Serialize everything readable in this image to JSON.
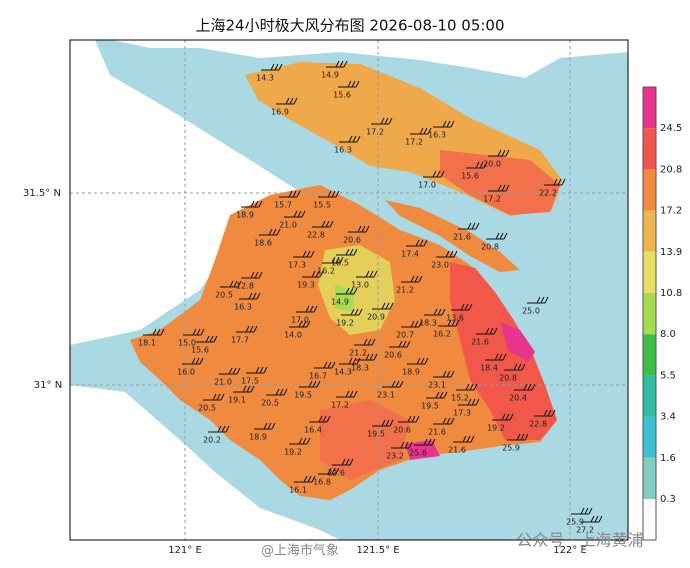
{
  "title": "上海24小时极大风分布图 2026-08-10 05:00",
  "lat_labels": [
    "31.5° N",
    "31° N"
  ],
  "lon_labels": [
    "121° E",
    "121.5° E",
    "122° E"
  ],
  "colorbar": [
    {
      "label": "24.5",
      "color": "#e8348c"
    },
    {
      "label": "20.8",
      "color": "#f0564a"
    },
    {
      "label": "17.2",
      "color": "#f08a3e"
    },
    {
      "label": "13.9",
      "color": "#eeb452"
    },
    {
      "label": "10.8",
      "color": "#e8e05e"
    },
    {
      "label": "8.0",
      "color": "#a6dc50"
    },
    {
      "label": "5.5",
      "color": "#3cbf44"
    },
    {
      "label": "3.4",
      "color": "#2fbfa0"
    },
    {
      "label": "1.6",
      "color": "#3ec0d4"
    },
    {
      "label": "0.3",
      "color": "#84cbc0"
    }
  ],
  "stations": [
    "14.3",
    "14.9",
    "15.6",
    "16.9",
    "17.2",
    "16.3",
    "16.3",
    "17.2",
    "20.0",
    "15.6",
    "17.0",
    "22.2",
    "17.2",
    "15.7",
    "15.5",
    "18.9",
    "21.0",
    "22.8",
    "20.6",
    "21.6",
    "20.8",
    "18.6",
    "17.3",
    "18.5",
    "17.4",
    "23.0",
    "16.2",
    "12.8",
    "19.3",
    "13.0",
    "20.5",
    "21.2",
    "16.3",
    "14.9",
    "20.9",
    "17.0",
    "19.2",
    "18.3",
    "13.6",
    "25.0",
    "18.1",
    "15.0",
    "15.6",
    "17.7",
    "14.0",
    "20.7",
    "16.2",
    "21.6",
    "21.2",
    "20.6",
    "21.0",
    "17.5",
    "16.7",
    "14.3",
    "18.3",
    "18.9",
    "18.4",
    "20.8",
    "16.0",
    "23.1",
    "20.4",
    "19.1",
    "20.5",
    "19.5",
    "17.2",
    "23.1",
    "15.2",
    "20.5",
    "20.2",
    "18.9",
    "16.4",
    "19.5",
    "17.3",
    "19.2",
    "22.8",
    "19.5",
    "20.6",
    "21.6",
    "25.9",
    "19.2",
    "23.2",
    "25.6",
    "21.6",
    "22.6",
    "16.1",
    "16.8",
    "25.9",
    "27.2"
  ],
  "watermarks": [
    "@上海市气象",
    "公众号 · 上海黄浦"
  ]
}
